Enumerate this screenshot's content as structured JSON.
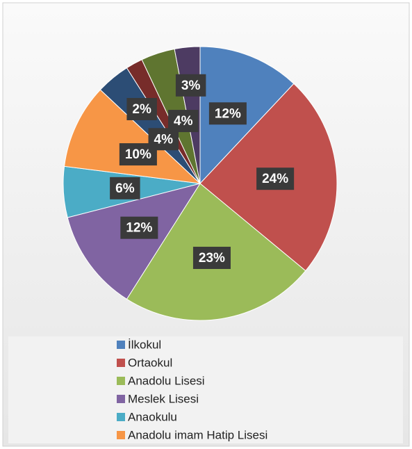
{
  "chart_data": {
    "type": "pie",
    "categories": [
      "İlkokul",
      "Ortaokul",
      "Anadolu Lisesi",
      "Meslek Lisesi",
      "Anaokulu",
      "Anadolu imam Hatip Lisesi",
      null,
      null,
      null,
      null
    ],
    "values": [
      12,
      24,
      23,
      12,
      6,
      10,
      4,
      2,
      4,
      3
    ],
    "value_labels": [
      "12%",
      "24%",
      "23%",
      "12%",
      "6%",
      "10%",
      "4%",
      "2%",
      "4%",
      "3%"
    ],
    "colors": [
      "#4f81bd",
      "#c0504d",
      "#9bbb59",
      "#8064a2",
      "#4bacc6",
      "#f79646",
      "#2c4d75",
      "#772c2a",
      "#5f7530",
      "#4d3b62"
    ],
    "legend": "bottom"
  }
}
